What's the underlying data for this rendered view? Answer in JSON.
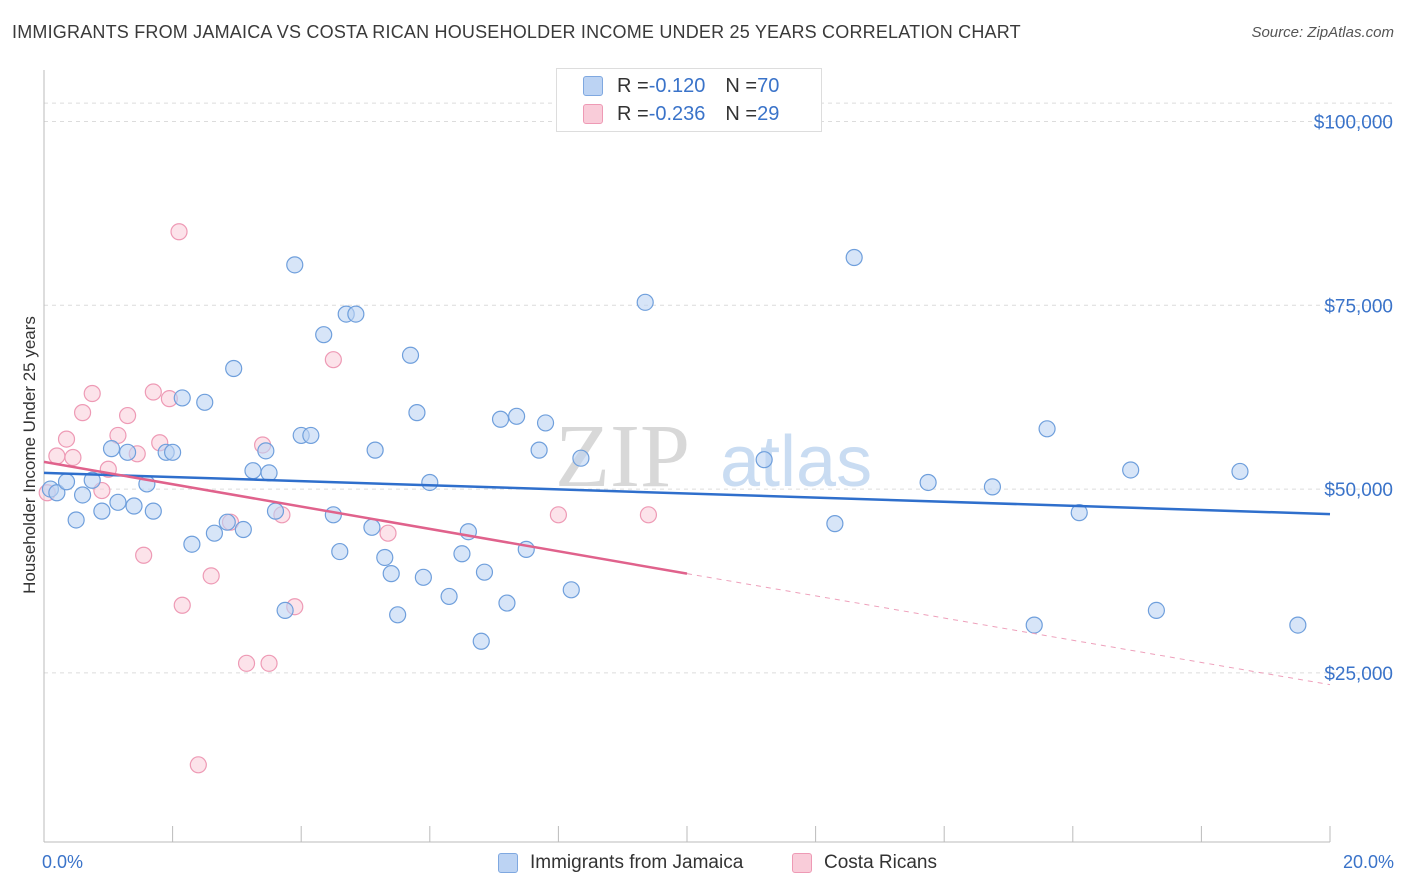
{
  "title": "IMMIGRANTS FROM JAMAICA VS COSTA RICAN HOUSEHOLDER INCOME UNDER 25 YEARS CORRELATION CHART",
  "source": "Source: ZipAtlas.com",
  "watermark": {
    "zip": "ZIP",
    "atlas": "atlas"
  },
  "legend": {
    "row1": {
      "r_label": "R = ",
      "r_value": "-0.120",
      "n_label": "N = ",
      "n_value": "70"
    },
    "row2": {
      "r_label": "R = ",
      "r_value": "-0.236",
      "n_label": "N = ",
      "n_value": "29"
    }
  },
  "chart_data": {
    "type": "scatter",
    "title": "IMMIGRANTS FROM JAMAICA VS COSTA RICAN HOUSEHOLDER INCOME UNDER 25 YEARS CORRELATION CHART",
    "xlabel": "",
    "ylabel": "Householder Income Under 25 years",
    "xlim": [
      0,
      20
    ],
    "ylim": [
      2000,
      107000
    ],
    "x_tick_labels": [
      "0.0%",
      "20.0%"
    ],
    "y_ticks": [
      25000,
      50000,
      75000,
      100000
    ],
    "y_tick_labels": [
      "$25,000",
      "$50,000",
      "$75,000",
      "$100,000"
    ],
    "grid": true,
    "legend_position": "bottom",
    "colors": {
      "jamaica": "#9dc0ec",
      "jamaica_line": "#2f6fcc",
      "costa": "#f5b4c8",
      "costa_line": "#e0628c"
    },
    "series": [
      {
        "name": "Immigrants from Jamaica",
        "trend": [
          [
            0.0,
            52200
          ],
          [
            20.0,
            46600
          ]
        ],
        "points": [
          [
            0.1,
            50000
          ],
          [
            0.2,
            49500
          ],
          [
            0.35,
            51000
          ],
          [
            0.5,
            45800
          ],
          [
            0.6,
            49200
          ],
          [
            0.75,
            51200
          ],
          [
            0.9,
            47000
          ],
          [
            1.05,
            55500
          ],
          [
            1.15,
            48200
          ],
          [
            1.3,
            55000
          ],
          [
            1.4,
            47700
          ],
          [
            1.6,
            50700
          ],
          [
            1.7,
            47000
          ],
          [
            1.9,
            55000
          ],
          [
            2.0,
            55000
          ],
          [
            2.15,
            62400
          ],
          [
            2.3,
            42500
          ],
          [
            2.5,
            61800
          ],
          [
            2.65,
            44000
          ],
          [
            2.85,
            45500
          ],
          [
            2.95,
            66400
          ],
          [
            3.1,
            44500
          ],
          [
            3.25,
            52500
          ],
          [
            3.45,
            55200
          ],
          [
            3.5,
            52200
          ],
          [
            3.6,
            47000
          ],
          [
            3.75,
            33500
          ],
          [
            3.9,
            80500
          ],
          [
            4.0,
            57300
          ],
          [
            4.15,
            57300
          ],
          [
            4.35,
            71000
          ],
          [
            4.5,
            46500
          ],
          [
            4.6,
            41500
          ],
          [
            4.7,
            73800
          ],
          [
            4.85,
            73800
          ],
          [
            5.1,
            44800
          ],
          [
            5.15,
            55300
          ],
          [
            5.3,
            40700
          ],
          [
            5.4,
            38500
          ],
          [
            5.5,
            32900
          ],
          [
            5.7,
            68200
          ],
          [
            5.8,
            60400
          ],
          [
            5.9,
            38000
          ],
          [
            6.0,
            50900
          ],
          [
            6.3,
            35400
          ],
          [
            6.5,
            41200
          ],
          [
            6.6,
            44200
          ],
          [
            6.8,
            29300
          ],
          [
            6.85,
            38700
          ],
          [
            7.1,
            59500
          ],
          [
            7.2,
            34500
          ],
          [
            7.35,
            59900
          ],
          [
            7.5,
            41800
          ],
          [
            7.7,
            55300
          ],
          [
            7.8,
            59000
          ],
          [
            8.2,
            36300
          ],
          [
            8.35,
            54200
          ],
          [
            9.35,
            75400
          ],
          [
            11.2,
            54000
          ],
          [
            12.3,
            45300
          ],
          [
            12.6,
            81500
          ],
          [
            13.75,
            50900
          ],
          [
            14.75,
            50300
          ],
          [
            15.4,
            31500
          ],
          [
            15.6,
            58200
          ],
          [
            16.1,
            46800
          ],
          [
            16.9,
            52600
          ],
          [
            17.3,
            33500
          ],
          [
            18.6,
            52400
          ],
          [
            19.5,
            31500
          ]
        ]
      },
      {
        "name": "Costa Ricans",
        "trend": [
          [
            0.0,
            53700
          ],
          [
            10.0,
            38500
          ]
        ],
        "trend_extension": [
          [
            10.0,
            38500
          ],
          [
            20.0,
            23400
          ]
        ],
        "points": [
          [
            0.05,
            49500
          ],
          [
            0.2,
            54500
          ],
          [
            0.35,
            56800
          ],
          [
            0.45,
            54300
          ],
          [
            0.6,
            60400
          ],
          [
            0.75,
            63000
          ],
          [
            0.9,
            49800
          ],
          [
            1.0,
            52700
          ],
          [
            1.15,
            57300
          ],
          [
            1.3,
            60000
          ],
          [
            1.45,
            54800
          ],
          [
            1.55,
            41000
          ],
          [
            1.7,
            63200
          ],
          [
            1.8,
            56300
          ],
          [
            1.95,
            62300
          ],
          [
            2.1,
            85000
          ],
          [
            2.15,
            34200
          ],
          [
            2.6,
            38200
          ],
          [
            2.9,
            45500
          ],
          [
            3.15,
            26300
          ],
          [
            3.4,
            56000
          ],
          [
            3.5,
            26300
          ],
          [
            3.7,
            46500
          ],
          [
            3.9,
            34000
          ],
          [
            4.5,
            67600
          ],
          [
            5.35,
            44000
          ],
          [
            8.0,
            46500
          ],
          [
            9.4,
            46500
          ],
          [
            2.4,
            12500
          ]
        ]
      }
    ]
  },
  "bottom_legend": {
    "item1": "Immigrants from Jamaica",
    "item2": "Costa Ricans"
  }
}
